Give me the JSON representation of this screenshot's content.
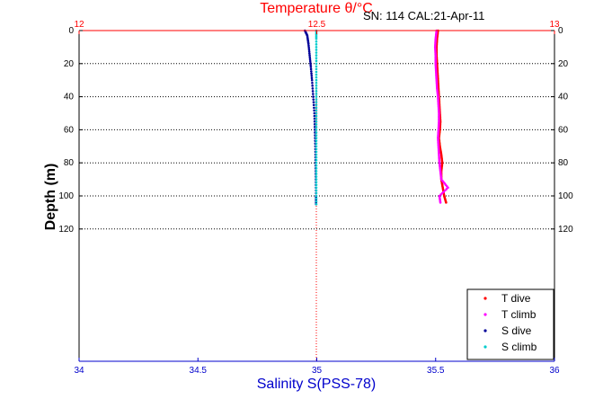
{
  "chart_data": {
    "type": "scatter",
    "title_top": "Temperature θ/°C",
    "annotation": "SN: 114  CAL:21-Apr-11",
    "xlabel_bottom": "Salinity S(PSS-78)",
    "ylabel": "Depth (m)",
    "x_bottom": {
      "range": [
        34,
        36
      ],
      "ticks": [
        "34",
        "34.5",
        "35",
        "35.5",
        "36"
      ],
      "color": "#0000cc"
    },
    "x_top": {
      "range": [
        12,
        13
      ],
      "ticks": [
        "12",
        "12.5",
        "13"
      ],
      "color": "#ff0000"
    },
    "y": {
      "range": [
        0,
        200
      ],
      "reversed": true,
      "ticks": [
        "0",
        "20",
        "40",
        "60",
        "80",
        "100",
        "120"
      ]
    },
    "grid": "horizontal-dotted",
    "legend_position": "bottom-right",
    "series": [
      {
        "name": "T dive",
        "axis": "top",
        "color": "#ff0000",
        "points": [
          [
            12.755,
            0
          ],
          [
            12.753,
            5
          ],
          [
            12.752,
            10
          ],
          [
            12.752,
            15
          ],
          [
            12.753,
            20
          ],
          [
            12.754,
            25
          ],
          [
            12.755,
            30
          ],
          [
            12.756,
            35
          ],
          [
            12.757,
            40
          ],
          [
            12.758,
            45
          ],
          [
            12.759,
            50
          ],
          [
            12.76,
            55
          ],
          [
            12.759,
            60
          ],
          [
            12.757,
            65
          ],
          [
            12.759,
            70
          ],
          [
            12.762,
            75
          ],
          [
            12.764,
            80
          ],
          [
            12.762,
            85
          ],
          [
            12.762,
            90
          ],
          [
            12.765,
            95
          ],
          [
            12.768,
            100
          ],
          [
            12.772,
            104
          ]
        ]
      },
      {
        "name": "T climb",
        "axis": "top",
        "color": "#ff00ff",
        "points": [
          [
            12.76,
            104
          ],
          [
            12.758,
            100
          ],
          [
            12.776,
            95
          ],
          [
            12.762,
            90
          ],
          [
            12.76,
            85
          ],
          [
            12.758,
            80
          ],
          [
            12.757,
            75
          ],
          [
            12.756,
            70
          ],
          [
            12.755,
            65
          ],
          [
            12.756,
            60
          ],
          [
            12.757,
            55
          ],
          [
            12.757,
            50
          ],
          [
            12.756,
            45
          ],
          [
            12.755,
            40
          ],
          [
            12.753,
            35
          ],
          [
            12.752,
            30
          ],
          [
            12.751,
            25
          ],
          [
            12.75,
            20
          ],
          [
            12.75,
            15
          ],
          [
            12.749,
            10
          ],
          [
            12.75,
            5
          ],
          [
            12.752,
            0
          ]
        ]
      },
      {
        "name": "S dive",
        "axis": "bottom",
        "color": "#000099",
        "points": [
          [
            34.95,
            0
          ],
          [
            34.96,
            3
          ],
          [
            34.965,
            8
          ],
          [
            34.97,
            15
          ],
          [
            34.975,
            22
          ],
          [
            34.98,
            30
          ],
          [
            34.985,
            40
          ],
          [
            34.99,
            50
          ],
          [
            34.992,
            60
          ],
          [
            34.994,
            70
          ],
          [
            34.995,
            80
          ],
          [
            34.996,
            90
          ],
          [
            34.997,
            100
          ],
          [
            34.997,
            105
          ]
        ]
      },
      {
        "name": "S climb",
        "axis": "bottom",
        "color": "#00cccc",
        "points": [
          [
            34.998,
            105
          ],
          [
            34.998,
            95
          ],
          [
            34.998,
            85
          ],
          [
            34.998,
            75
          ],
          [
            34.998,
            65
          ],
          [
            34.998,
            55
          ],
          [
            34.998,
            45
          ],
          [
            34.998,
            35
          ],
          [
            34.998,
            25
          ],
          [
            34.998,
            15
          ],
          [
            34.998,
            5
          ],
          [
            34.998,
            0
          ]
        ]
      }
    ]
  }
}
